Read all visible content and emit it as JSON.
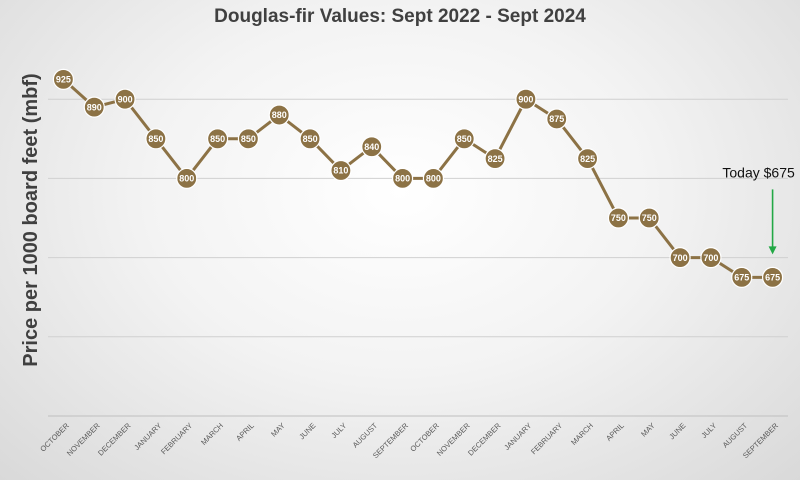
{
  "chart_data": {
    "type": "line",
    "title": "Douglas-fir Values: Sept 2022 - Sept 2024",
    "xlabel": "",
    "ylabel": "Price per 1000 board feet (mbf)",
    "ylim": [
      500,
      1000
    ],
    "y_gridlines": [
      600,
      700,
      800,
      900
    ],
    "grid": true,
    "legend": "none",
    "categories": [
      "OCTOBER",
      "NOVEMBER",
      "DECEMBER",
      "JANUARY",
      "FEBRUARY",
      "MARCH",
      "APRIL",
      "MAY",
      "JUNE",
      "JULY",
      "AUGUST",
      "SEPTEMBER",
      "OCTOBER",
      "NOVEMBER",
      "DECEMBER",
      "JANUARY",
      "FEBRUARY",
      "MARCH",
      "APRIL",
      "MAY",
      "JUNE",
      "JULY",
      "AUGUST",
      "SEPTEMBER"
    ],
    "series": [
      {
        "values": [
          925,
          890,
          900,
          850,
          800,
          850,
          850,
          880,
          850,
          810,
          840,
          800,
          800,
          850,
          825,
          900,
          875,
          825,
          750,
          750,
          700,
          700,
          675,
          675
        ]
      }
    ],
    "data_labels": [
      "925",
      "890",
      "900",
      "850",
      "800",
      "850",
      "850",
      "880",
      "850",
      "810",
      "840",
      "800",
      "800",
      "850",
      "825",
      "900",
      "875",
      "825",
      "750",
      "750",
      "700",
      "700",
      "675",
      "675"
    ],
    "annotations": [
      {
        "text": "Today $675",
        "category_index": 23
      }
    ],
    "colors": {
      "line": "#8c7245",
      "marker": "#8c7245",
      "marker_border": "#ffffff",
      "grid": "#d0d0d0",
      "arrow": "#22a845",
      "title": "#404040"
    }
  }
}
